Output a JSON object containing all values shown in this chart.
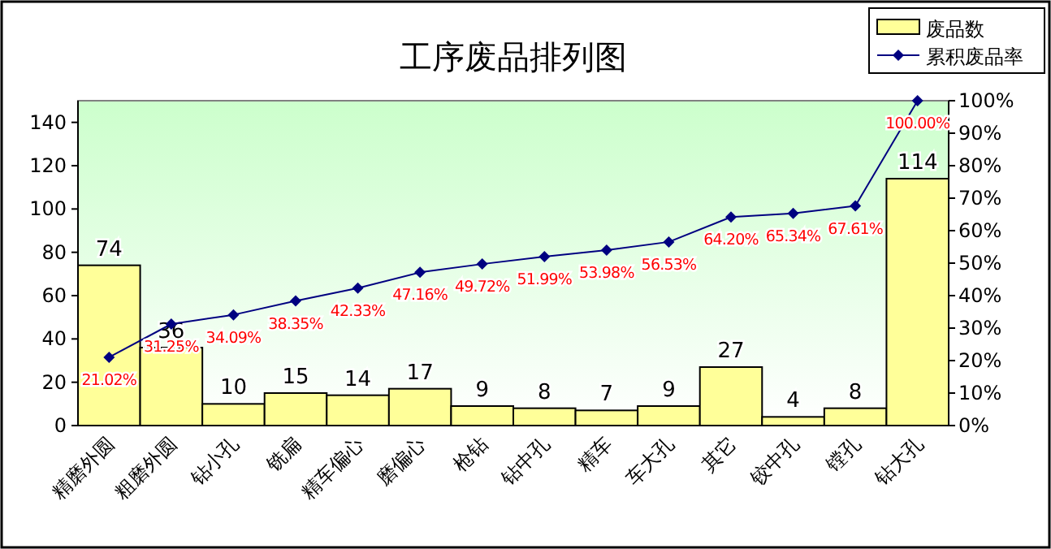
{
  "chart_data": {
    "type": "bar",
    "title": "工序废品排列图",
    "categories": [
      "精磨外圆",
      "粗磨外圆",
      "钻小孔",
      "铣扁",
      "精车偏心",
      "磨偏心",
      "枪钻",
      "钻中孔",
      "精车",
      "车大孔",
      "其它",
      "铰中孔",
      "镗孔",
      "钻大孔"
    ],
    "series": [
      {
        "name": "废品数",
        "color": "#ffff99",
        "values": [
          74,
          36,
          10,
          15,
          14,
          17,
          9,
          8,
          7,
          9,
          27,
          4,
          8,
          114
        ],
        "value_labels": [
          "74",
          "36",
          "10",
          "15",
          "14",
          "17",
          "9",
          "8",
          "7",
          "9",
          "27",
          "4",
          "8",
          "114"
        ]
      },
      {
        "name": "累积废品率",
        "type": "line",
        "axis": "y2",
        "color": "#000080",
        "marker": "diamond",
        "values": [
          21.02,
          31.25,
          34.09,
          38.35,
          42.33,
          47.16,
          49.72,
          51.99,
          53.98,
          56.53,
          64.2,
          65.34,
          67.61,
          100.0
        ],
        "value_labels": [
          "21.02%",
          "31.25%",
          "34.09%",
          "38.35%",
          "42.33%",
          "47.16%",
          "49.72%",
          "51.99%",
          "53.98%",
          "56.53%",
          "64.20%",
          "65.34%",
          "67.61%",
          "100.00%"
        ]
      }
    ],
    "ylim": [
      0,
      150
    ],
    "yticks": [
      0,
      20,
      40,
      60,
      80,
      100,
      120,
      140
    ],
    "y2lim": [
      0,
      100
    ],
    "y2ticks": [
      {
        "value": 0,
        "label": "0%"
      },
      {
        "value": 10,
        "label": "10%"
      },
      {
        "value": 20,
        "label": "20%"
      },
      {
        "value": 30,
        "label": "30%"
      },
      {
        "value": 40,
        "label": "40%"
      },
      {
        "value": 50,
        "label": "50%"
      },
      {
        "value": 60,
        "label": "60%"
      },
      {
        "value": 70,
        "label": "70%"
      },
      {
        "value": 80,
        "label": "80%"
      },
      {
        "value": 90,
        "label": "90%"
      },
      {
        "value": 100,
        "label": "100%"
      }
    ],
    "legend": "top right",
    "grid": false
  }
}
